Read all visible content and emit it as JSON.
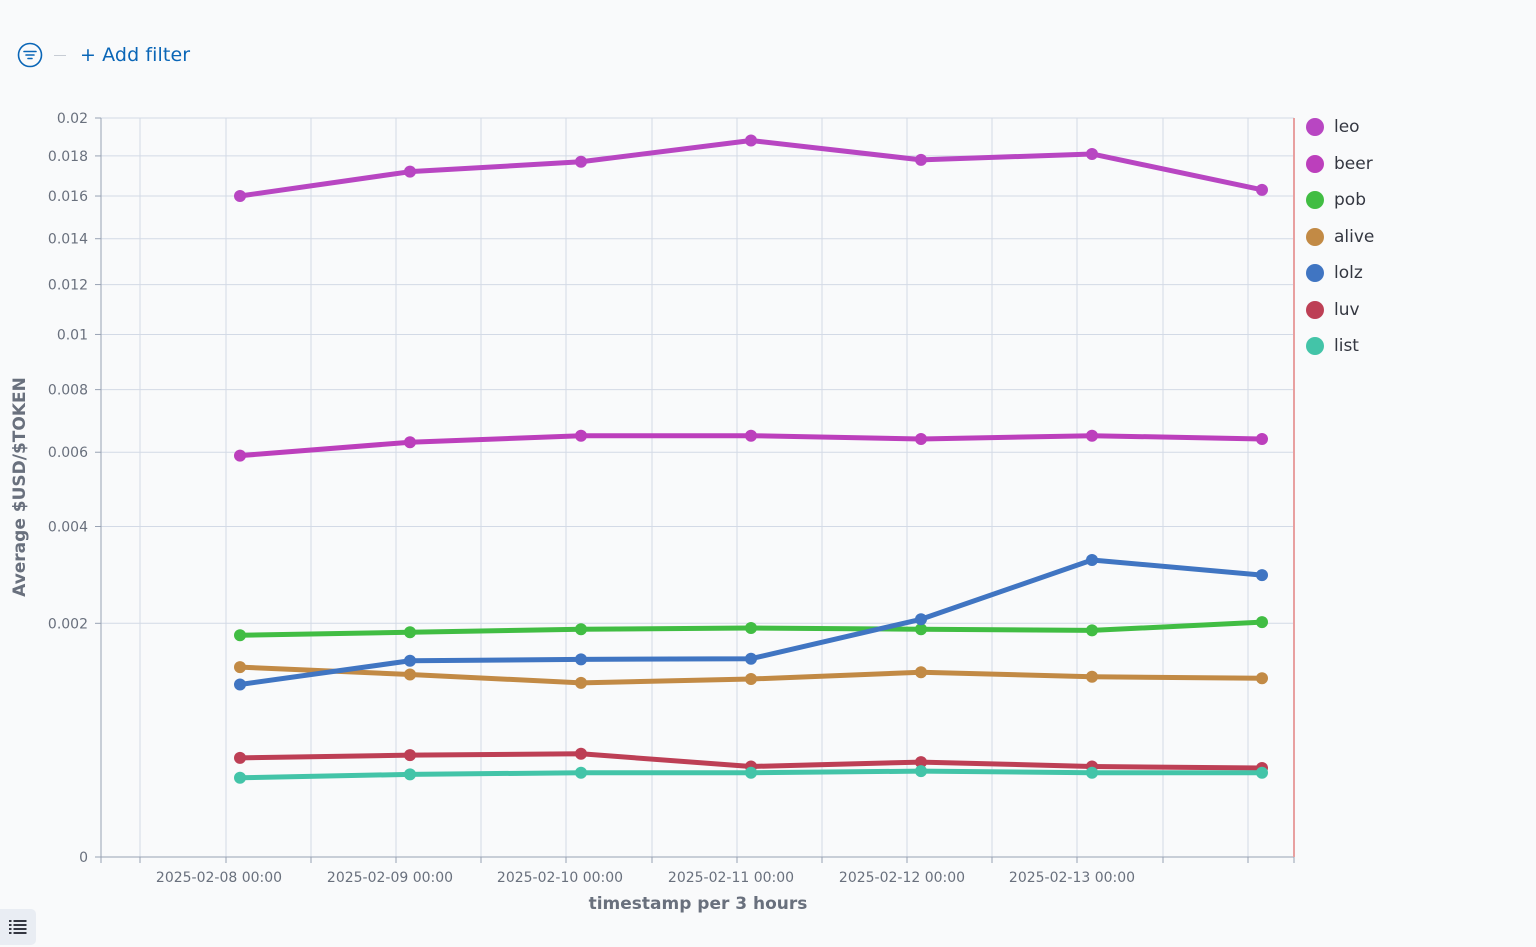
{
  "filter_bar": {
    "add_filter_label": "+ Add filter",
    "filter_icon": "filter-icon"
  },
  "colors": {
    "link": "#0a66b7",
    "axis_text": "#69707d",
    "axis_title": "#69707d",
    "grid": "#d3dae6",
    "end_marker": "#e8a0a0"
  },
  "chart_data": {
    "type": "line",
    "xlabel": "timestamp per 3 hours",
    "ylabel": "Average $USD/$TOKEN",
    "y_scale": "sqrt",
    "ylim": [
      0,
      0.02
    ],
    "y_ticks": [
      0,
      0.002,
      0.004,
      0.006,
      0.008,
      0.01,
      0.012,
      0.014,
      0.016,
      0.018,
      0.02
    ],
    "y_tick_labels": [
      "0",
      "0.002",
      "0.004",
      "0.006",
      "0.008",
      "0.01",
      "0.012",
      "0.014",
      "0.016",
      "0.018",
      "0.02"
    ],
    "x_tick_labels": [
      "2025-02-08 00:00",
      "2025-02-09 00:00",
      "2025-02-10 00:00",
      "2025-02-11 00:00",
      "2025-02-12 00:00",
      "2025-02-13 00:00"
    ],
    "x": [
      "2025-02-08 03:00",
      "2025-02-09 03:00",
      "2025-02-10 03:00",
      "2025-02-11 03:00",
      "2025-02-12 03:00",
      "2025-02-13 03:00",
      "2025-02-14 03:00"
    ],
    "grid": true,
    "legend_position": "right",
    "series": [
      {
        "name": "leo",
        "color": "#b846c2",
        "values": [
          0.016,
          0.0172,
          0.0177,
          0.0188,
          0.0178,
          0.0181,
          0.0163
        ]
      },
      {
        "name": "beer",
        "color": "#bc3fbc",
        "values": [
          0.0059,
          0.0063,
          0.0065,
          0.0065,
          0.0064,
          0.0065,
          0.0064
        ]
      },
      {
        "name": "pob",
        "color": "#41bd43",
        "values": [
          0.0018,
          0.00185,
          0.0019,
          0.00192,
          0.0019,
          0.00188,
          0.00202
        ]
      },
      {
        "name": "alive",
        "color": "#c28a45",
        "values": [
          0.00132,
          0.00122,
          0.00111,
          0.00116,
          0.00125,
          0.00119,
          0.00117
        ]
      },
      {
        "name": "lolz",
        "color": "#4075c2",
        "values": [
          0.00109,
          0.00141,
          0.00143,
          0.00144,
          0.00207,
          0.00323,
          0.00291
        ]
      },
      {
        "name": "luv",
        "color": "#bd3f55",
        "values": [
          0.00036,
          0.00038,
          0.00039,
          0.0003,
          0.00033,
          0.0003,
          0.00029
        ]
      },
      {
        "name": "list",
        "color": "#43c4a8",
        "values": [
          0.00023,
          0.00025,
          0.00026,
          0.00026,
          0.00027,
          0.00026,
          0.00026
        ]
      }
    ]
  }
}
